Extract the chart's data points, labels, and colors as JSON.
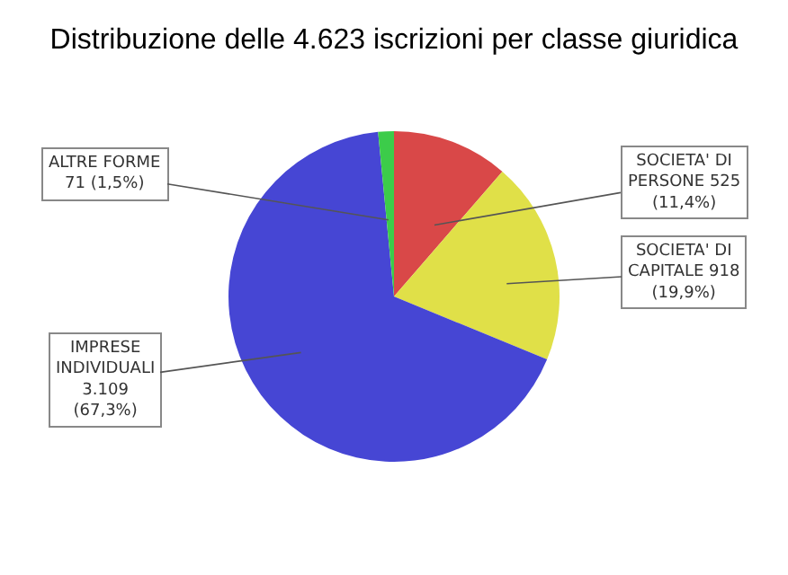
{
  "chart_data": {
    "type": "pie",
    "title": "Distribuzione delle 4.623 iscrizioni per classe giuridica",
    "categories": [
      "SOCIETA' DI PERSONE",
      "SOCIETA' DI CAPITALE",
      "IMPRESE INDIVIDUALI",
      "ALTRE FORME"
    ],
    "values": [
      525,
      918,
      3109,
      71
    ],
    "colors": [
      "#d94848",
      "#e0e048",
      "#4646d4",
      "#3ccc4a"
    ],
    "value_labels": [
      "525 (11,4%)",
      "918 (19,9%)",
      "3.109 (67,3%)",
      "71 (1,5%)"
    ],
    "legend": false
  }
}
